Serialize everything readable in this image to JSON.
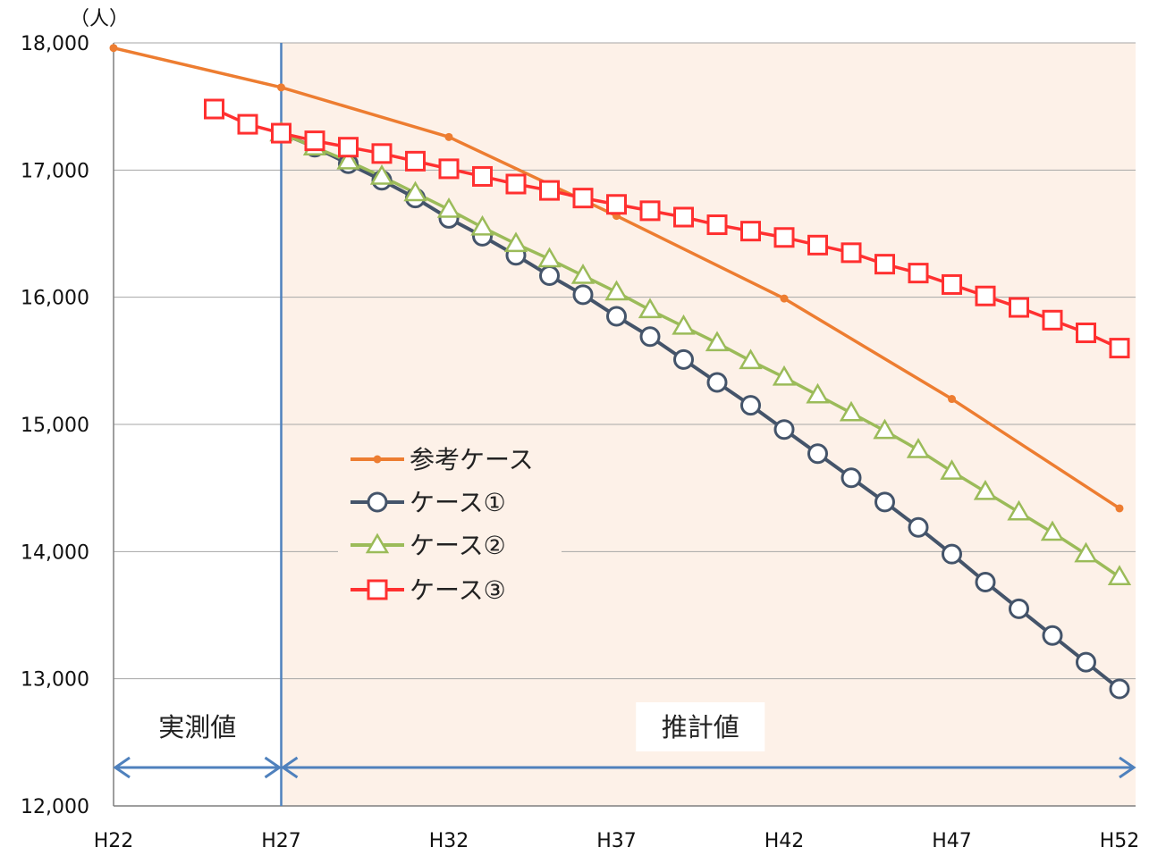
{
  "chart_data": {
    "type": "line",
    "unit_label": "（人）",
    "ylim": [
      12000,
      18000
    ],
    "yticks": [
      12000,
      13000,
      14000,
      15000,
      16000,
      17000,
      18000
    ],
    "ytick_labels": [
      "12,000",
      "13,000",
      "14,000",
      "15,000",
      "16,000",
      "17,000",
      "18,000"
    ],
    "xlim": [
      22,
      52
    ],
    "xticks": [
      22,
      27,
      32,
      37,
      42,
      47,
      52
    ],
    "xtick_labels": [
      "H22",
      "H27",
      "H32",
      "H37",
      "H42",
      "H47",
      "H52"
    ],
    "divider_x": 27,
    "regions": [
      {
        "label": "実測値",
        "from": 22,
        "to": 27
      },
      {
        "label": "推計値",
        "from": 27,
        "to": 52
      }
    ],
    "grid": true,
    "legend_position": "center-left",
    "series": [
      {
        "name": "参考ケース",
        "color": "#ED7D31",
        "marker": "dot",
        "x": [
          22,
          27,
          32,
          37,
          42,
          47,
          52
        ],
        "y": [
          17960,
          17650,
          17260,
          16640,
          15990,
          15200,
          14340
        ]
      },
      {
        "name": "ケース①",
        "color": "#44546A",
        "marker": "circle",
        "x": [
          27,
          28,
          29,
          30,
          31,
          32,
          33,
          34,
          35,
          36,
          37,
          38,
          39,
          40,
          41,
          42,
          43,
          44,
          45,
          46,
          47,
          48,
          49,
          50,
          51,
          52
        ],
        "y": [
          17290,
          17180,
          17050,
          16920,
          16780,
          16620,
          16480,
          16330,
          16170,
          16020,
          15850,
          15690,
          15510,
          15330,
          15150,
          14960,
          14770,
          14580,
          14390,
          14190,
          13980,
          13760,
          13550,
          13340,
          13130,
          12920
        ]
      },
      {
        "name": "ケース②",
        "color": "#9BBB59",
        "marker": "triangle",
        "x": [
          27,
          28,
          29,
          30,
          31,
          32,
          33,
          34,
          35,
          36,
          37,
          38,
          39,
          40,
          41,
          42,
          43,
          44,
          45,
          46,
          47,
          48,
          49,
          50,
          51,
          52
        ],
        "y": [
          17290,
          17180,
          17070,
          16950,
          16820,
          16690,
          16550,
          16420,
          16300,
          16170,
          16040,
          15900,
          15770,
          15640,
          15500,
          15370,
          15230,
          15090,
          14950,
          14800,
          14630,
          14470,
          14310,
          14150,
          13980,
          13800
        ]
      },
      {
        "name": "ケース③",
        "color": "#FF3030",
        "marker": "square",
        "x": [
          25,
          26,
          27,
          28,
          29,
          30,
          31,
          32,
          33,
          34,
          35,
          36,
          37,
          38,
          39,
          40,
          41,
          42,
          43,
          44,
          45,
          46,
          47,
          48,
          49,
          50,
          51,
          52
        ],
        "y": [
          17480,
          17360,
          17290,
          17230,
          17180,
          17130,
          17070,
          17010,
          16950,
          16890,
          16840,
          16780,
          16730,
          16680,
          16630,
          16570,
          16520,
          16470,
          16410,
          16350,
          16260,
          16190,
          16100,
          16010,
          15920,
          15820,
          15720,
          15600
        ]
      }
    ],
    "colors": {
      "forecast_bg": "#FDF1E8",
      "divider": "#4F81BD",
      "arrow": "#4F81BD",
      "grid": "#A6A6A6"
    }
  }
}
